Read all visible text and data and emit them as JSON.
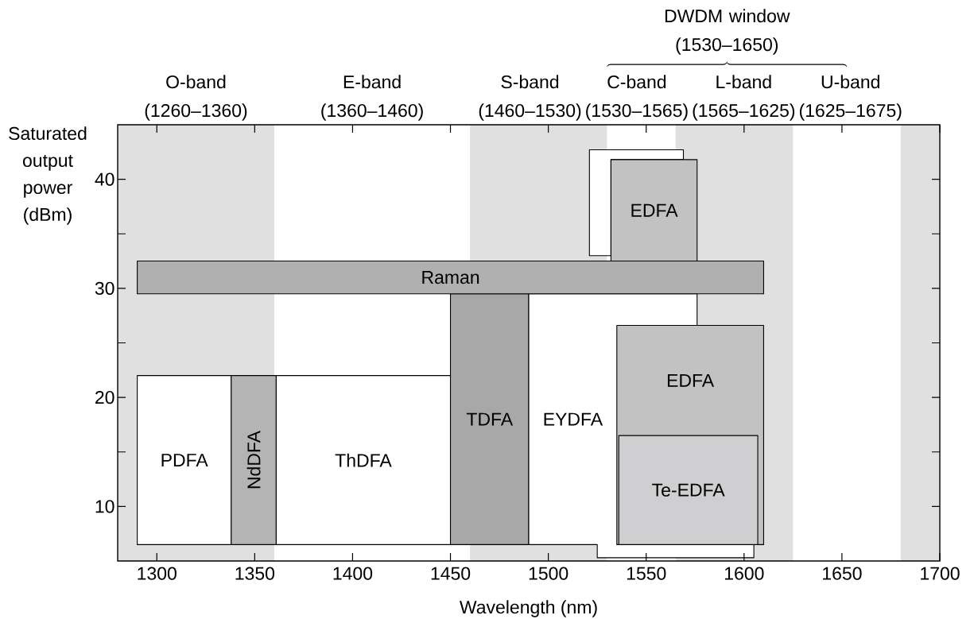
{
  "chart_data": {
    "type": "area",
    "xlabel": "Wavelength (nm)",
    "ylabel": "Saturated output power (dBm)",
    "xlim": [
      1280,
      1700
    ],
    "ylim": [
      5,
      45
    ],
    "xticks": [
      1300,
      1350,
      1400,
      1450,
      1500,
      1550,
      1600,
      1650,
      1700
    ],
    "yticks": [
      10,
      {
        "value": 15,
        "label": null
      },
      20,
      {
        "value": 25,
        "label": null
      },
      30,
      {
        "value": 35,
        "label": null
      },
      40
    ],
    "bands": [
      {
        "axis": "x",
        "from": 1260,
        "to": 1360,
        "label": "O-band (1260–1360)",
        "color": "#e0e0e0"
      },
      {
        "axis": "x",
        "from": 1460,
        "to": 1530,
        "label": "S-band (1460–1530)",
        "color": "#e0e0e0"
      },
      {
        "axis": "x",
        "from": 1565,
        "to": 1625,
        "label": "L-band (1565–1625)",
        "color": "#e0e0e0"
      },
      {
        "axis": "x",
        "from": 1680,
        "to": 1700,
        "color": "#e0e0e0"
      }
    ],
    "annotations": [
      "E-band (1360–1460)",
      "C-band (1530–1565)",
      "U-band (1625–1675)",
      "DWDM window (1530–1650)"
    ],
    "series": [
      {
        "name": "PDFA",
        "color": "#ffffff",
        "x": [
          1290,
          1290,
          1338,
          1338
        ],
        "values": [
          6.5,
          22,
          22,
          6.5
        ]
      },
      {
        "name": "NdDFA",
        "color": "#b4b4b4",
        "x": [
          1338,
          1338,
          1361,
          1361
        ],
        "values": [
          6.5,
          22,
          22,
          6.5
        ]
      },
      {
        "name": "ThDFA",
        "color": "#ffffff",
        "x": [
          1361,
          1361,
          1450,
          1450
        ],
        "values": [
          6.5,
          22,
          22,
          6.5
        ]
      },
      {
        "name": "TDFA",
        "color": "#a8a8a8",
        "x": [
          1450,
          1450,
          1490,
          1490
        ],
        "values": [
          6.5,
          29.5,
          29.5,
          6.5
        ]
      },
      {
        "name": "EYDFA",
        "color": "#ffffff",
        "x": [
          1490,
          1490,
          1576,
          1576,
          1605,
          1605,
          1525,
          1525
        ],
        "values": [
          6.5,
          29.5,
          29.5,
          26.6,
          26.6,
          5.3,
          5.3,
          6.5
        ]
      },
      {
        "name": "Raman",
        "color": "#b0b0b0",
        "x": [
          1290,
          1290,
          1610,
          1610
        ],
        "values": [
          29.5,
          32.5,
          32.5,
          29.5
        ]
      },
      {
        "color": "#ffffff",
        "x": [
          1521,
          1521,
          1569,
          1569,
          1532,
          1532
        ],
        "values": [
          33,
          42.7,
          42.7,
          41.8,
          41.8,
          33
        ]
      },
      {
        "name": "EDFA",
        "color": "#c2c2c2",
        "x": [
          1532,
          1532,
          1576,
          1576
        ],
        "values": [
          32.5,
          41.8,
          41.8,
          32.5
        ]
      },
      {
        "name": "EDFA",
        "color": "#c2c2c2",
        "x": [
          1535,
          1535,
          1610,
          1610
        ],
        "values": [
          6.5,
          26.6,
          26.6,
          6.5
        ]
      },
      {
        "name": "Te-EDFA",
        "color": "#cfcfd1",
        "x": [
          1536,
          1536,
          1607,
          1607
        ],
        "values": [
          6.5,
          16.5,
          16.5,
          6.5
        ]
      }
    ]
  }
}
